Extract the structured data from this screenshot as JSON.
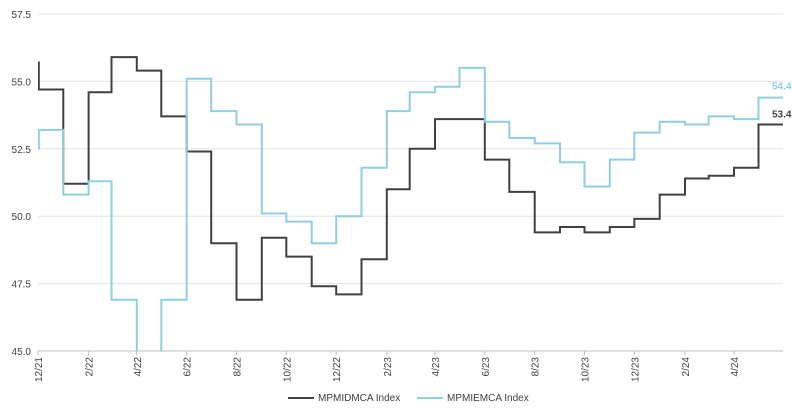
{
  "chart_data": {
    "type": "line",
    "title": "",
    "xlabel": "",
    "ylabel": "",
    "ylim": [
      45.0,
      57.5
    ],
    "yticks": [
      "45.0",
      "47.5",
      "50.0",
      "52.5",
      "55.0",
      "57.5"
    ],
    "xticks": [
      "12/21",
      "2/22",
      "4/22",
      "6/22",
      "8/22",
      "10/22",
      "12/22",
      "2/23",
      "4/23",
      "6/23",
      "8/23",
      "10/23",
      "12/23",
      "2/24",
      "4/24"
    ],
    "grid": "horizontal",
    "legend": "bottom-center",
    "series": [
      {
        "name": "MPMIDMCA Index",
        "color": "#404040",
        "end_label": "53.4",
        "points": [
          [
            "2021-12-01",
            55.7
          ],
          [
            "2021-12-02",
            54.7
          ],
          [
            "2022-01-01",
            51.2
          ],
          [
            "2022-02-01",
            54.6
          ],
          [
            "2022-03-01",
            55.9
          ],
          [
            "2022-04-01",
            55.4
          ],
          [
            "2022-05-01",
            53.7
          ],
          [
            "2022-06-01",
            52.4
          ],
          [
            "2022-07-01",
            49.0
          ],
          [
            "2022-08-01",
            46.9
          ],
          [
            "2022-09-01",
            49.2
          ],
          [
            "2022-10-01",
            48.5
          ],
          [
            "2022-11-01",
            47.4
          ],
          [
            "2022-12-01",
            47.1
          ],
          [
            "2023-01-01",
            48.4
          ],
          [
            "2023-02-01",
            51.0
          ],
          [
            "2023-03-01",
            52.5
          ],
          [
            "2023-04-01",
            53.6
          ],
          [
            "2023-05-01",
            53.6
          ],
          [
            "2023-06-01",
            52.1
          ],
          [
            "2023-07-01",
            50.9
          ],
          [
            "2023-08-01",
            49.4
          ],
          [
            "2023-09-01",
            49.6
          ],
          [
            "2023-10-01",
            49.4
          ],
          [
            "2023-11-01",
            49.6
          ],
          [
            "2023-12-01",
            49.9
          ],
          [
            "2024-01-01",
            50.8
          ],
          [
            "2024-02-01",
            51.4
          ],
          [
            "2024-03-01",
            51.5
          ],
          [
            "2024-04-01",
            51.8
          ],
          [
            "2024-05-01",
            53.4
          ],
          [
            "2024-05-31",
            53.4
          ]
        ]
      },
      {
        "name": "MPMIEMCA Index",
        "color": "#8ecfe0",
        "end_label": "54.4",
        "points": [
          [
            "2021-12-01",
            52.5
          ],
          [
            "2021-12-02",
            53.2
          ],
          [
            "2022-01-01",
            50.8
          ],
          [
            "2022-02-01",
            51.3
          ],
          [
            "2022-03-01",
            46.9
          ],
          [
            "2022-04-01",
            44.0
          ],
          [
            "2022-05-01",
            46.9
          ],
          [
            "2022-06-01",
            55.1
          ],
          [
            "2022-07-01",
            53.9
          ],
          [
            "2022-08-01",
            53.4
          ],
          [
            "2022-09-01",
            50.1
          ],
          [
            "2022-10-01",
            49.8
          ],
          [
            "2022-11-01",
            49.0
          ],
          [
            "2022-12-01",
            50.0
          ],
          [
            "2023-01-01",
            51.8
          ],
          [
            "2023-02-01",
            53.9
          ],
          [
            "2023-03-01",
            54.6
          ],
          [
            "2023-04-01",
            54.8
          ],
          [
            "2023-05-01",
            55.5
          ],
          [
            "2023-06-01",
            53.5
          ],
          [
            "2023-07-01",
            52.9
          ],
          [
            "2023-08-01",
            52.7
          ],
          [
            "2023-09-01",
            52.0
          ],
          [
            "2023-10-01",
            51.1
          ],
          [
            "2023-11-01",
            52.1
          ],
          [
            "2023-12-01",
            53.1
          ],
          [
            "2024-01-01",
            53.5
          ],
          [
            "2024-02-01",
            53.4
          ],
          [
            "2024-03-01",
            53.7
          ],
          [
            "2024-04-01",
            53.6
          ],
          [
            "2024-05-01",
            54.4
          ],
          [
            "2024-05-31",
            54.4
          ]
        ]
      }
    ]
  }
}
